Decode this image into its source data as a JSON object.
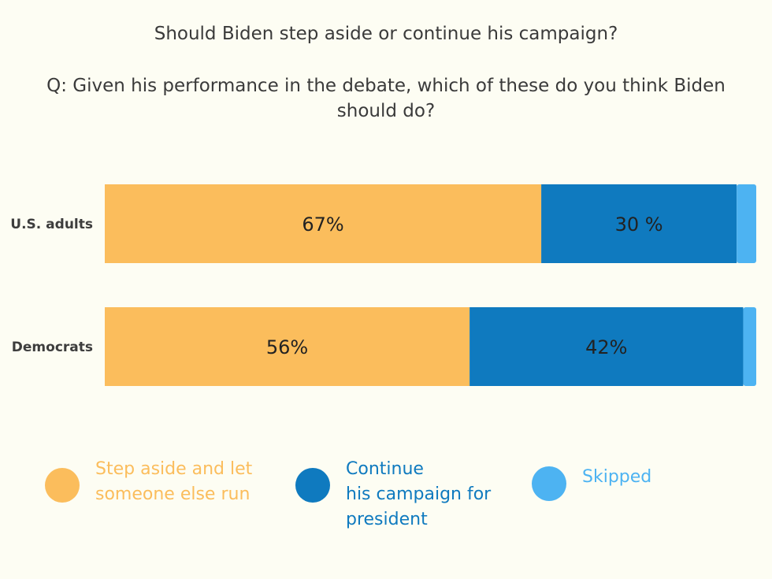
{
  "title": "Should Biden step aside or continue his campaign?",
  "question": "Q: Given his performance in the debate, which of these do you think Biden should do?",
  "colors": {
    "step_aside": "#fbbd5c",
    "continue": "#0f7abf",
    "skipped": "#4db3f2"
  },
  "chart_data": {
    "type": "bar",
    "orientation": "horizontal",
    "stacked": true,
    "categories": [
      "U.S. adults",
      "Democrats"
    ],
    "series": [
      {
        "name": "Step aside and let someone else run",
        "values": [
          67,
          56
        ],
        "labels": [
          "67%",
          "56%"
        ]
      },
      {
        "name": "Continue his campaign for president",
        "values": [
          30,
          42
        ],
        "labels": [
          "30 %",
          "42%"
        ]
      },
      {
        "name": "Skipped",
        "values": [
          3,
          2
        ],
        "labels": [
          "",
          ""
        ]
      }
    ],
    "xlim": [
      0,
      100
    ],
    "grid": false,
    "legend_position": "bottom"
  },
  "legend": [
    {
      "label": "Step aside and let\nsomeone else run",
      "color_key": "step_aside"
    },
    {
      "label": "Continue\nhis campaign for\npresident",
      "color_key": "continue"
    },
    {
      "label": "Skipped",
      "color_key": "skipped"
    }
  ]
}
